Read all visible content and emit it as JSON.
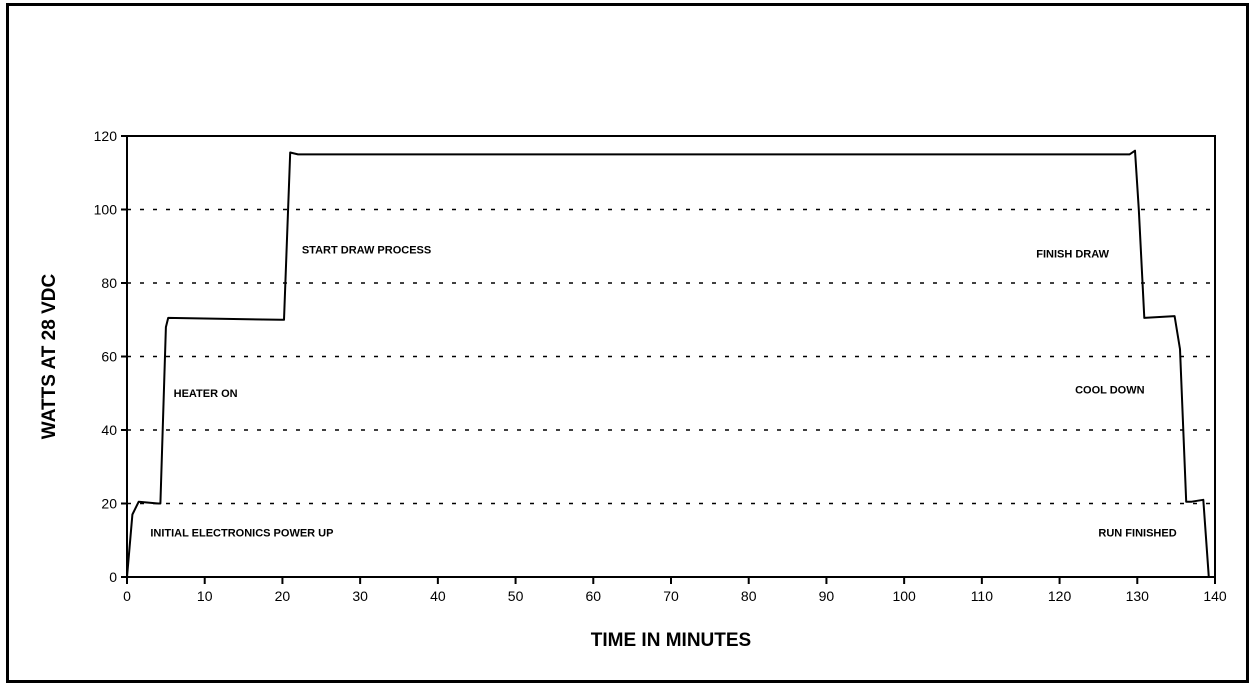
{
  "chart_data": {
    "type": "line",
    "title": "",
    "xlabel": "TIME IN MINUTES",
    "ylabel": "WATTS AT 28 VDC",
    "xlim": [
      0,
      140
    ],
    "ylim": [
      0,
      120
    ],
    "x_ticks": [
      0,
      10,
      20,
      30,
      40,
      50,
      60,
      70,
      80,
      90,
      100,
      110,
      120,
      130,
      140
    ],
    "y_ticks": [
      0,
      20,
      40,
      60,
      80,
      100,
      120
    ],
    "grid": "horizontal dotted",
    "legend": "none",
    "series": [
      {
        "x": [
          0,
          0.7,
          1.5,
          4.0,
          4.3,
          5.0,
          5.3,
          19.8,
          20.2,
          21.0,
          22.0,
          129.0,
          129.7,
          130.2,
          130.9,
          134.8,
          135.5,
          136.3,
          137.0,
          138.5,
          139.2
        ],
        "y": [
          0,
          17,
          20.5,
          20,
          20,
          68,
          70.5,
          70,
          70,
          115.5,
          115,
          115,
          116,
          100,
          70.5,
          71,
          62,
          20.5,
          20.5,
          21,
          0
        ]
      }
    ],
    "annotations": [
      {
        "text": "INITIAL ELECTRONICS POWER UP",
        "x": 3,
        "y": 11
      },
      {
        "text": "HEATER ON",
        "x": 6,
        "y": 49
      },
      {
        "text": "START DRAW PROCESS",
        "x": 22.5,
        "y": 88
      },
      {
        "text": "FINISH DRAW",
        "x": 117,
        "y": 87
      },
      {
        "text": "COOL DOWN",
        "x": 122,
        "y": 50
      },
      {
        "text": "RUN FINISHED",
        "x": 125,
        "y": 11
      }
    ]
  }
}
